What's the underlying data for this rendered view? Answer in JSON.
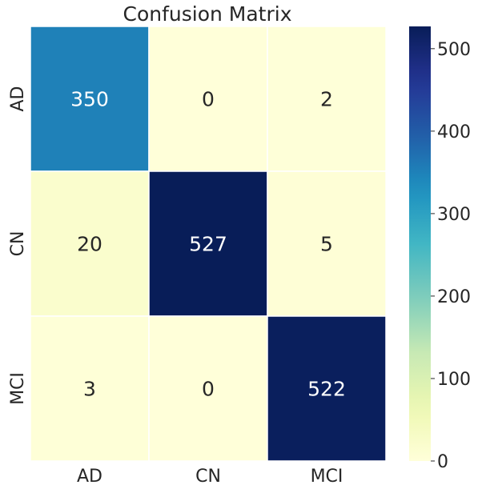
{
  "chart_data": {
    "type": "heatmap",
    "title": "Confusion Matrix",
    "xlabel": "",
    "ylabel": "",
    "x_categories": [
      "AD",
      "CN",
      "MCI"
    ],
    "y_categories": [
      "AD",
      "CN",
      "MCI"
    ],
    "values": [
      [
        350,
        0,
        2
      ],
      [
        20,
        527,
        5
      ],
      [
        3,
        0,
        522
      ]
    ],
    "colorscale": "YlGnBu",
    "vmin": 0,
    "vmax": 527,
    "colorbar_ticks": [
      "0",
      "100",
      "200",
      "300",
      "400",
      "500"
    ],
    "colorbar_tick_values": [
      0,
      100,
      200,
      300,
      400,
      500
    ],
    "annotated": true,
    "grid": false,
    "legend": "colorbar-right",
    "colors": {
      "cell_border": "#ffffff",
      "text_dark": "#262626",
      "text_light": "#ffffff"
    }
  }
}
